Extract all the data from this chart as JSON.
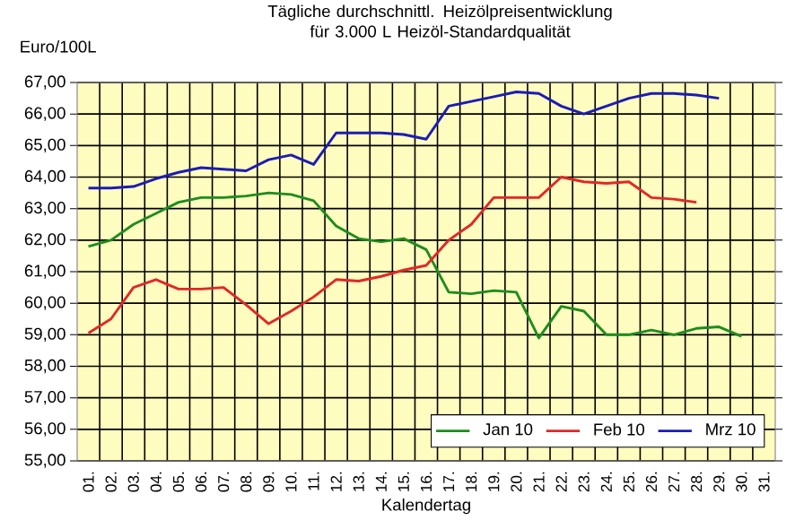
{
  "chart_data": {
    "type": "line",
    "title": "Tägliche durchschnittl. Heizölpreisentwicklung für 3.000 L Heizöl-Standardqualität",
    "xlabel": "Kalendertag",
    "ylabel": "Euro/100L",
    "categories": [
      "01.",
      "02.",
      "03.",
      "04.",
      "05.",
      "06.",
      "07.",
      "08.",
      "09.",
      "10.",
      "11.",
      "12.",
      "13.",
      "14.",
      "15.",
      "16.",
      "17.",
      "18.",
      "19.",
      "20.",
      "21.",
      "22.",
      "23.",
      "24.",
      "25.",
      "26.",
      "27.",
      "28.",
      "29.",
      "30.",
      "31."
    ],
    "series": [
      {
        "name": "Jan 10",
        "color": "#1e8c1e",
        "values": [
          61.8,
          62.0,
          62.5,
          62.85,
          63.2,
          63.35,
          63.35,
          63.4,
          63.5,
          63.45,
          63.25,
          62.45,
          62.05,
          61.95,
          62.05,
          61.7,
          60.35,
          60.3,
          60.4,
          60.35,
          58.9,
          59.9,
          59.75,
          59.0,
          59.0,
          59.15,
          59.0,
          59.2,
          59.25,
          58.95,
          null
        ]
      },
      {
        "name": "Feb 10",
        "color": "#e02828",
        "values": [
          59.05,
          59.5,
          60.5,
          60.75,
          60.45,
          60.45,
          60.5,
          59.95,
          59.35,
          59.75,
          60.2,
          60.75,
          60.7,
          60.85,
          61.05,
          61.2,
          62.0,
          62.5,
          63.35,
          63.35,
          63.35,
          64.0,
          63.85,
          63.8,
          63.85,
          63.35,
          63.3,
          63.2,
          null,
          null,
          null
        ]
      },
      {
        "name": "Mrz 10",
        "color": "#1c1cb4",
        "values": [
          63.65,
          63.65,
          63.7,
          63.95,
          64.15,
          64.3,
          64.25,
          64.2,
          64.55,
          64.7,
          64.4,
          65.4,
          65.4,
          65.4,
          65.35,
          65.2,
          66.25,
          66.4,
          66.55,
          66.7,
          66.65,
          66.25,
          66.0,
          66.25,
          66.5,
          66.65,
          66.65,
          66.6,
          66.5,
          null,
          null
        ]
      }
    ],
    "ylim": [
      55,
      67
    ],
    "yticks": [
      {
        "value": 55,
        "label": "55,00"
      },
      {
        "value": 56,
        "label": "56,00"
      },
      {
        "value": 57,
        "label": "57,00"
      },
      {
        "value": 58,
        "label": "58,00"
      },
      {
        "value": 59,
        "label": "59,00"
      },
      {
        "value": 60,
        "label": "60,00"
      },
      {
        "value": 61,
        "label": "61,00"
      },
      {
        "value": 62,
        "label": "62,00"
      },
      {
        "value": 63,
        "label": "63,00"
      },
      {
        "value": 64,
        "label": "64,00"
      },
      {
        "value": 65,
        "label": "65,00"
      },
      {
        "value": 66,
        "label": "66,00"
      },
      {
        "value": 67,
        "label": "67,00"
      }
    ],
    "grid": true,
    "legend": "bottom right",
    "marker": "none",
    "line_style": "solid"
  }
}
